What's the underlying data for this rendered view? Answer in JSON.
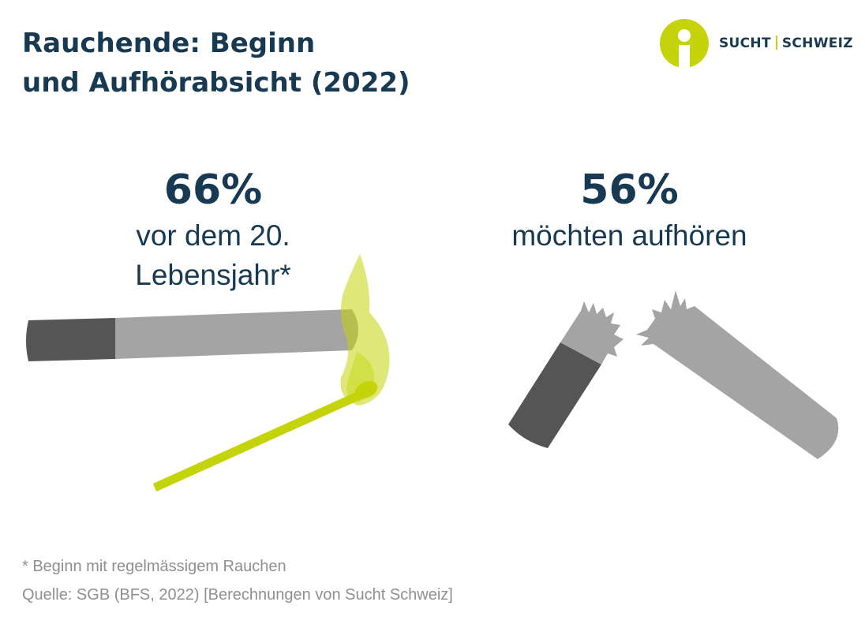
{
  "title": {
    "line1": "Rauchende: Beginn",
    "line2": "und Aufhörabsicht (2022)"
  },
  "logo": {
    "left": "SUCHT",
    "right": "SCHWEIZ",
    "icon": "person-circle-icon"
  },
  "stats": [
    {
      "value": "66%",
      "label_line1": "vor dem 20.",
      "label_line2": "Lebensjahr*",
      "icon": "lit-cigarette-icon"
    },
    {
      "value": "56%",
      "label_line1": "möchten aufhören",
      "icon": "broken-cigarette-icon"
    }
  ],
  "footnote": "* Beginn mit regelmässigem Rauchen",
  "source": "Quelle: SGB (BFS, 2022) [Berechnungen von Sucht Schweiz]",
  "colors": {
    "navy": "#173a52",
    "lime": "#c5d40a",
    "cigarette_light": "#a4a4a4",
    "cigarette_dark": "#555555",
    "muted_text": "#8f8f8f"
  }
}
